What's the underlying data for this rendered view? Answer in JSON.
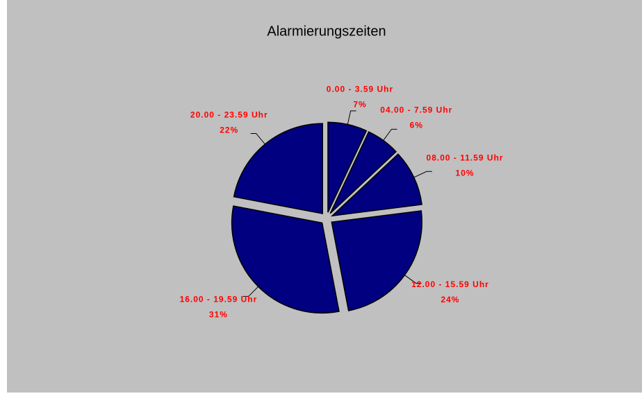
{
  "chart_data": {
    "type": "pie",
    "title": "Alarmierungszeiten",
    "categories": [
      "0.00 - 3.59 Uhr",
      "04.00 - 7.59 Uhr",
      "08.00 - 11.59 Uhr",
      "12.00 - 15.59 Uhr",
      "16.00 - 19.59 Uhr",
      "20.00 - 23.59 Uhr"
    ],
    "values": [
      7,
      6,
      10,
      24,
      31,
      22
    ],
    "value_labels": [
      "7%",
      "6%",
      "10%",
      "24%",
      "31%",
      "22%"
    ],
    "color": "#000080",
    "label_color": "#ff0000"
  }
}
